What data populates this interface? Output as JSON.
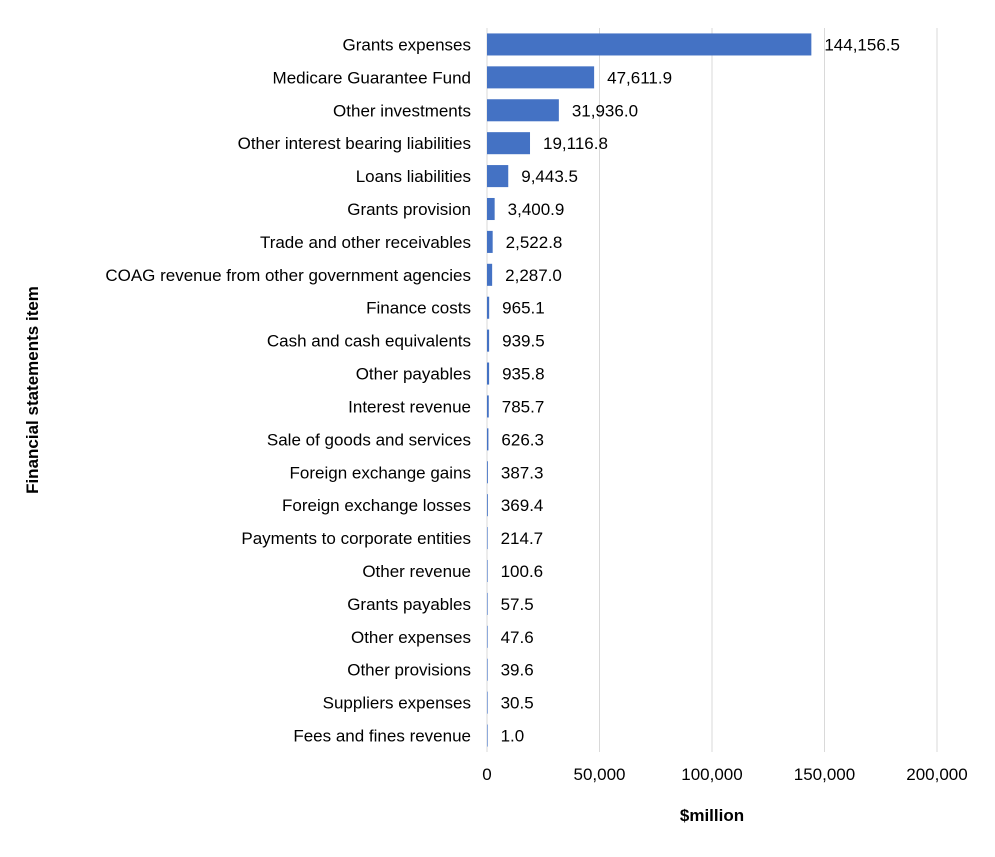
{
  "chart_data": {
    "type": "bar",
    "orientation": "horizontal",
    "title": "",
    "xlabel": "$million",
    "ylabel": "Financial statements item",
    "xlim": [
      0,
      200000
    ],
    "xticks": [
      0,
      50000,
      100000,
      150000,
      200000
    ],
    "xtick_labels": [
      "0",
      "50,000",
      "100,000",
      "150,000",
      "200,000"
    ],
    "grid": "vertical",
    "legend": "none",
    "bar_color": "#4472C4",
    "categories": [
      "Grants expenses",
      "Medicare Guarantee Fund",
      "Other investments",
      "Other interest bearing liabilities",
      "Loans liabilities",
      "Grants provision",
      "Trade and other receivables",
      "COAG revenue from other government agencies",
      "Finance costs",
      "Cash and cash equivalents",
      "Other payables",
      "Interest revenue",
      "Sale of goods and services",
      "Foreign exchange gains",
      "Foreign exchange losses",
      "Payments to corporate entities",
      "Other revenue",
      "Grants payables",
      "Other expenses",
      "Other provisions",
      "Suppliers expenses",
      "Fees and fines revenue"
    ],
    "values": [
      144156.5,
      47611.9,
      31936.0,
      19116.8,
      9443.5,
      3400.9,
      2522.8,
      2287.0,
      965.1,
      939.5,
      935.8,
      785.7,
      626.3,
      387.3,
      369.4,
      214.7,
      100.6,
      57.5,
      47.6,
      39.6,
      30.5,
      1.0
    ],
    "value_labels": [
      "144,156.5",
      "47,611.9",
      "31,936.0",
      "19,116.8",
      "9,443.5",
      "3,400.9",
      "2,522.8",
      "2,287.0",
      "965.1",
      "939.5",
      "935.8",
      "785.7",
      "626.3",
      "387.3",
      "369.4",
      "214.7",
      "100.6",
      "57.5",
      "47.6",
      "39.6",
      "30.5",
      "1.0"
    ]
  }
}
